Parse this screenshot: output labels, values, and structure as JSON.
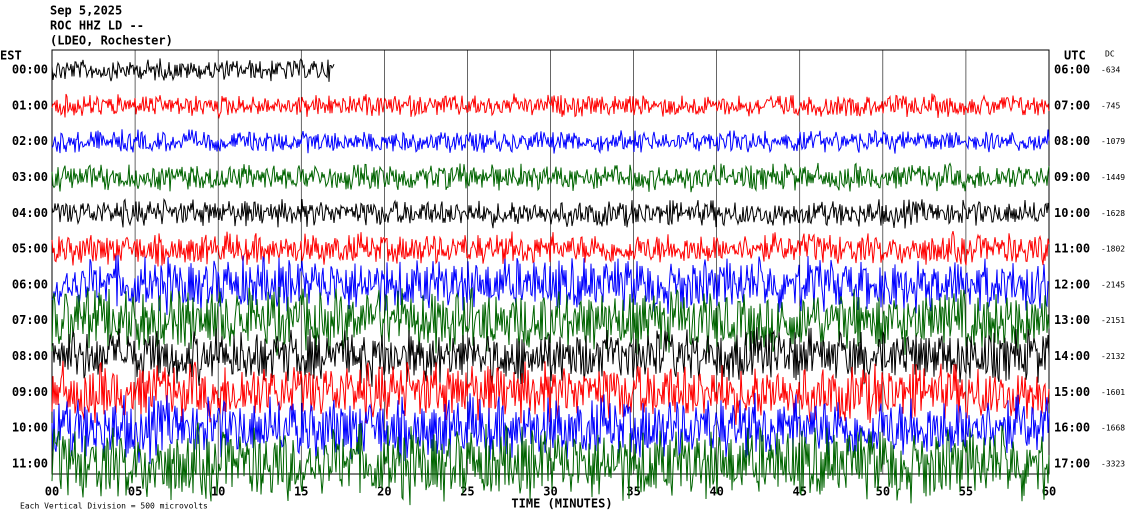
{
  "chart_data": {
    "type": "helicorder",
    "title": "Sep 5,2025",
    "subtitle": "ROC HHZ LD --",
    "network": "(LDEO, Rochester)",
    "left_axis_title": "EST",
    "right_axis_title": "UTC",
    "dc_title": "DC",
    "x_label": "TIME (MINUTES)",
    "footer": "Each Vertical Division = 500 microvolts",
    "xlim": [
      0,
      60
    ],
    "xticks": [
      {
        "value": 0,
        "label": "00"
      },
      {
        "value": 5,
        "label": "05"
      },
      10,
      15,
      20,
      25,
      30,
      35,
      40,
      45,
      50,
      55,
      60
    ],
    "grid": true,
    "colors": [
      "#000000",
      "#ff0000",
      "#0000ff",
      "#006400"
    ],
    "rows": [
      {
        "est": "00:00",
        "utc": "06:00",
        "dc": -634
      },
      {
        "est": "01:00",
        "utc": "07:00",
        "dc": -745
      },
      {
        "est": "02:00",
        "utc": "08:00",
        "dc": -1079
      },
      {
        "est": "03:00",
        "utc": "09:00",
        "dc": -1449
      },
      {
        "est": "04:00",
        "utc": "10:00",
        "dc": -1628
      },
      {
        "est": "05:00",
        "utc": "11:00",
        "dc": -1802
      },
      {
        "est": "06:00",
        "utc": "12:00",
        "dc": -2145
      },
      {
        "est": "07:00",
        "utc": "13:00",
        "dc": -2151
      },
      {
        "est": "08:00",
        "utc": "14:00",
        "dc": -2132
      },
      {
        "est": "09:00",
        "utc": "15:00",
        "dc": -1601
      },
      {
        "est": "10:00",
        "utc": "16:00",
        "dc": -1668
      },
      {
        "est": "11:00",
        "utc": "17:00",
        "dc": -3323
      }
    ]
  }
}
